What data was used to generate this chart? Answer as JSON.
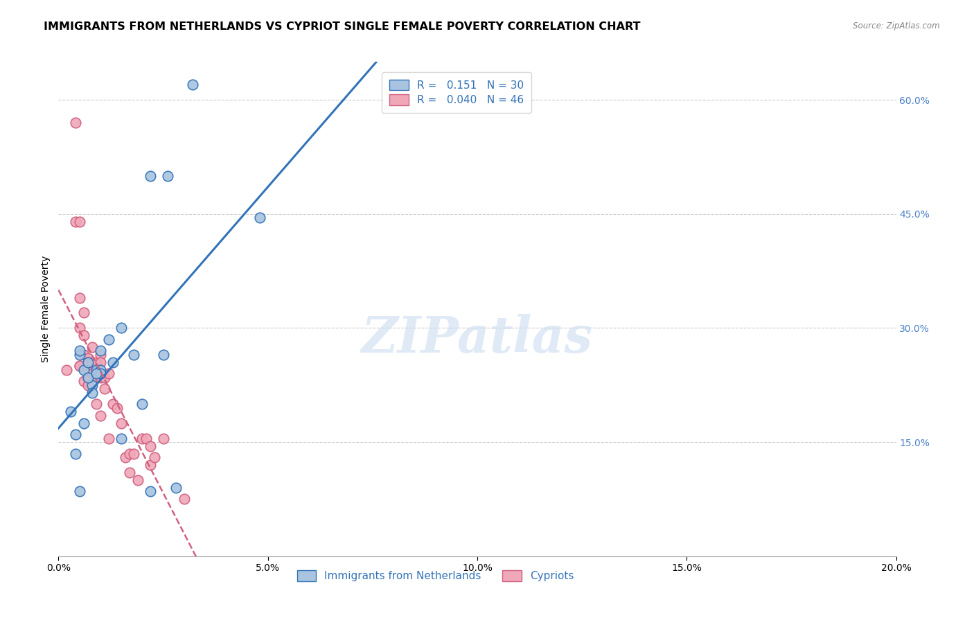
{
  "title": "IMMIGRANTS FROM NETHERLANDS VS CYPRIOT SINGLE FEMALE POVERTY CORRELATION CHART",
  "source": "Source: ZipAtlas.com",
  "ylabel_left": "Single Female Poverty",
  "y_ticks_right_vals": [
    0.6,
    0.45,
    0.3,
    0.15
  ],
  "y_ticks_right_labels": [
    "60.0%",
    "45.0%",
    "30.0%",
    "15.0%"
  ],
  "xlim": [
    0.0,
    0.2
  ],
  "ylim": [
    0.0,
    0.65
  ],
  "legend_blue_r": "0.151",
  "legend_blue_n": "30",
  "legend_pink_r": "0.040",
  "legend_pink_n": "46",
  "watermark": "ZIPatlas",
  "blue_scatter_x": [
    0.032,
    0.022,
    0.026,
    0.005,
    0.005,
    0.006,
    0.007,
    0.008,
    0.009,
    0.01,
    0.003,
    0.004,
    0.004,
    0.005,
    0.048,
    0.015,
    0.012,
    0.01,
    0.018,
    0.025,
    0.006,
    0.008,
    0.013,
    0.01,
    0.007,
    0.009,
    0.02,
    0.015,
    0.022,
    0.028
  ],
  "blue_scatter_y": [
    0.62,
    0.5,
    0.5,
    0.265,
    0.27,
    0.245,
    0.255,
    0.225,
    0.245,
    0.245,
    0.19,
    0.16,
    0.135,
    0.085,
    0.445,
    0.3,
    0.285,
    0.27,
    0.265,
    0.265,
    0.175,
    0.215,
    0.255,
    0.24,
    0.235,
    0.24,
    0.2,
    0.155,
    0.085,
    0.09
  ],
  "pink_scatter_x": [
    0.002,
    0.004,
    0.004,
    0.005,
    0.005,
    0.005,
    0.005,
    0.005,
    0.006,
    0.006,
    0.006,
    0.006,
    0.007,
    0.007,
    0.007,
    0.007,
    0.007,
    0.008,
    0.008,
    0.008,
    0.009,
    0.009,
    0.009,
    0.01,
    0.01,
    0.01,
    0.01,
    0.011,
    0.011,
    0.012,
    0.012,
    0.013,
    0.014,
    0.015,
    0.016,
    0.017,
    0.017,
    0.018,
    0.019,
    0.02,
    0.021,
    0.022,
    0.022,
    0.023,
    0.025,
    0.03
  ],
  "pink_scatter_y": [
    0.245,
    0.57,
    0.44,
    0.44,
    0.34,
    0.25,
    0.25,
    0.3,
    0.32,
    0.29,
    0.265,
    0.23,
    0.26,
    0.255,
    0.245,
    0.235,
    0.225,
    0.275,
    0.255,
    0.24,
    0.255,
    0.235,
    0.2,
    0.265,
    0.255,
    0.235,
    0.185,
    0.235,
    0.22,
    0.24,
    0.155,
    0.2,
    0.195,
    0.175,
    0.13,
    0.135,
    0.11,
    0.135,
    0.1,
    0.155,
    0.155,
    0.145,
    0.12,
    0.13,
    0.155,
    0.075
  ],
  "blue_color": "#a8c4e0",
  "blue_line_color": "#3373b8",
  "pink_color": "#f0a8b8",
  "pink_line_color": "#d06080",
  "background_color": "#ffffff",
  "grid_color": "#cccccc",
  "right_axis_color": "#4a80c8",
  "title_fontsize": 11.5,
  "axis_label_fontsize": 10,
  "tick_fontsize": 10
}
